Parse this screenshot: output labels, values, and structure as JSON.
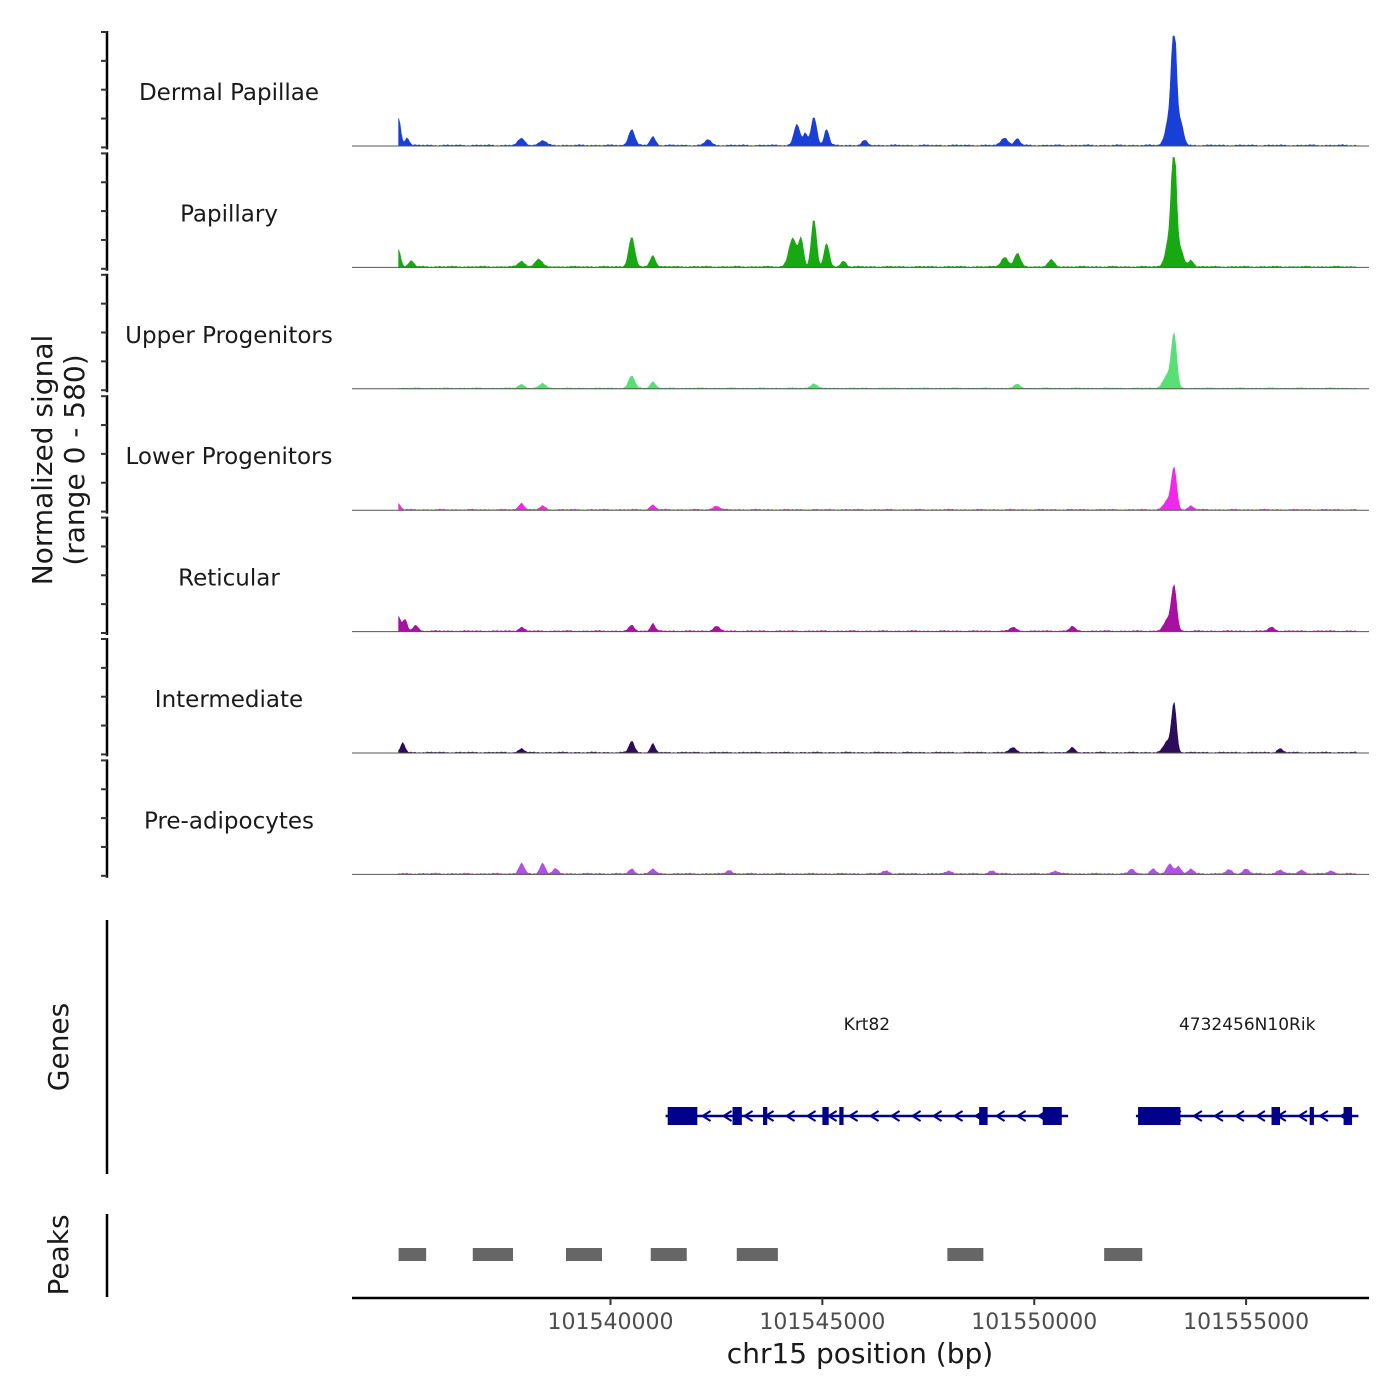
{
  "chart_data": {
    "type": "area",
    "title": "",
    "ylabel": "Normalized signal",
    "ylabel_range": "(range 0 - 580)",
    "xlabel": "chr15 position (bp)",
    "xlim": [
      101533900,
      101557900
    ],
    "ylim": [
      0,
      580
    ],
    "x_ticks": [
      101540000,
      101545000,
      101550000,
      101555000
    ],
    "x_tick_labels": [
      "101540000",
      "101545000",
      "101550000",
      "101555000"
    ],
    "series": [
      {
        "name": "Dermal Papillae",
        "color": "#1a3fd6",
        "baseline": 25,
        "noise": 5,
        "peaks": [
          [
            101535000,
            140,
            50
          ],
          [
            101535200,
            40,
            50
          ],
          [
            101537900,
            35,
            80
          ],
          [
            101538400,
            25,
            80
          ],
          [
            101540500,
            85,
            70
          ],
          [
            101541000,
            45,
            60
          ],
          [
            101542300,
            30,
            70
          ],
          [
            101544400,
            110,
            70
          ],
          [
            101544600,
            60,
            50
          ],
          [
            101544800,
            150,
            65
          ],
          [
            101545100,
            85,
            55
          ],
          [
            101546000,
            25,
            60
          ],
          [
            101549300,
            40,
            80
          ],
          [
            101549600,
            35,
            60
          ],
          [
            101553200,
            160,
            90
          ],
          [
            101553300,
            580,
            55
          ],
          [
            101553450,
            120,
            70
          ]
        ]
      },
      {
        "name": "Papillary",
        "color": "#18a812",
        "baseline": 25,
        "noise": 5,
        "peaks": [
          [
            101535000,
            90,
            50
          ],
          [
            101535300,
            30,
            60
          ],
          [
            101537900,
            30,
            70
          ],
          [
            101538300,
            40,
            80
          ],
          [
            101540500,
            155,
            70
          ],
          [
            101541000,
            60,
            60
          ],
          [
            101544300,
            150,
            90
          ],
          [
            101544500,
            140,
            55
          ],
          [
            101544800,
            250,
            60
          ],
          [
            101545100,
            120,
            60
          ],
          [
            101545500,
            30,
            60
          ],
          [
            101549300,
            50,
            80
          ],
          [
            101549600,
            70,
            70
          ],
          [
            101550400,
            35,
            70
          ],
          [
            101553200,
            160,
            90
          ],
          [
            101553300,
            580,
            55
          ],
          [
            101553450,
            90,
            70
          ],
          [
            101553700,
            35,
            60
          ]
        ]
      },
      {
        "name": "Upper Progenitors",
        "color": "#58e075",
        "baseline": 15,
        "noise": 4,
        "peaks": [
          [
            101537900,
            20,
            70
          ],
          [
            101538400,
            25,
            70
          ],
          [
            101540500,
            65,
            70
          ],
          [
            101541000,
            35,
            60
          ],
          [
            101544800,
            25,
            70
          ],
          [
            101549600,
            20,
            70
          ],
          [
            101553300,
            270,
            60
          ],
          [
            101553150,
            70,
            100
          ]
        ]
      },
      {
        "name": "Lower Progenitors",
        "color": "#f028e8",
        "baseline": 15,
        "noise": 4,
        "peaks": [
          [
            101535000,
            30,
            50
          ],
          [
            101537900,
            35,
            60
          ],
          [
            101538400,
            20,
            60
          ],
          [
            101541000,
            25,
            60
          ],
          [
            101542500,
            20,
            70
          ],
          [
            101553300,
            210,
            60
          ],
          [
            101553150,
            50,
            90
          ],
          [
            101553700,
            20,
            60
          ]
        ]
      },
      {
        "name": "Reticular",
        "color": "#a80fa3",
        "baseline": 15,
        "noise": 4,
        "peaks": [
          [
            101535000,
            75,
            50
          ],
          [
            101535150,
            60,
            50
          ],
          [
            101535400,
            30,
            60
          ],
          [
            101537900,
            20,
            60
          ],
          [
            101540500,
            30,
            60
          ],
          [
            101541000,
            40,
            50
          ],
          [
            101542500,
            25,
            70
          ],
          [
            101549500,
            20,
            70
          ],
          [
            101550900,
            25,
            60
          ],
          [
            101553300,
            230,
            60
          ],
          [
            101553150,
            60,
            90
          ],
          [
            101555600,
            20,
            70
          ]
        ]
      },
      {
        "name": "Intermediate",
        "color": "#2e0c5c",
        "baseline": 15,
        "noise": 4,
        "peaks": [
          [
            101535100,
            50,
            50
          ],
          [
            101537900,
            20,
            60
          ],
          [
            101540500,
            60,
            60
          ],
          [
            101541000,
            45,
            50
          ],
          [
            101549500,
            25,
            80
          ],
          [
            101550900,
            25,
            60
          ],
          [
            101553300,
            250,
            55
          ],
          [
            101553150,
            60,
            90
          ],
          [
            101555800,
            20,
            60
          ]
        ]
      },
      {
        "name": "Pre-adipocytes",
        "color": "#b050e8",
        "baseline": 8,
        "noise": 5,
        "peaks": [
          [
            101537900,
            55,
            60
          ],
          [
            101538400,
            55,
            60
          ],
          [
            101538700,
            25,
            60
          ],
          [
            101540500,
            25,
            60
          ],
          [
            101541000,
            25,
            60
          ],
          [
            101542800,
            20,
            60
          ],
          [
            101546500,
            15,
            80
          ],
          [
            101548000,
            15,
            70
          ],
          [
            101549000,
            15,
            70
          ],
          [
            101550500,
            15,
            70
          ],
          [
            101552300,
            25,
            60
          ],
          [
            101552800,
            25,
            60
          ],
          [
            101553200,
            50,
            70
          ],
          [
            101553400,
            40,
            60
          ],
          [
            101553700,
            25,
            60
          ],
          [
            101554600,
            20,
            70
          ],
          [
            101555000,
            25,
            70
          ],
          [
            101555800,
            20,
            70
          ],
          [
            101556300,
            20,
            70
          ],
          [
            101557000,
            15,
            70
          ]
        ]
      }
    ],
    "genes": {
      "label": "Genes",
      "strand": "minus",
      "color": "#00008b",
      "items": [
        {
          "name": "Krt82",
          "start": 101541300,
          "end": 101550800,
          "exons": [
            [
              101541350,
              101542050
            ],
            [
              101542880,
              101543100
            ],
            [
              101543600,
              101543700
            ],
            [
              101545000,
              101545150
            ],
            [
              101545400,
              101545500
            ],
            [
              101548700,
              101548900
            ],
            [
              101550200,
              101550650
            ]
          ]
        },
        {
          "name": "4732456N10Rik",
          "start": 101552400,
          "end": 101557650,
          "exons": [
            [
              101552450,
              101553450
            ],
            [
              101555600,
              101555800
            ],
            [
              101556500,
              101556600
            ],
            [
              101557300,
              101557500
            ]
          ]
        }
      ]
    },
    "peaks": {
      "label": "Peaks",
      "color": "#666666",
      "regions": [
        [
          101535000,
          101535650
        ],
        [
          101536750,
          101537700
        ],
        [
          101538950,
          101539800
        ],
        [
          101540950,
          101541800
        ],
        [
          101542980,
          101543950
        ],
        [
          101547950,
          101548800
        ],
        [
          101551650,
          101552550
        ]
      ]
    }
  }
}
